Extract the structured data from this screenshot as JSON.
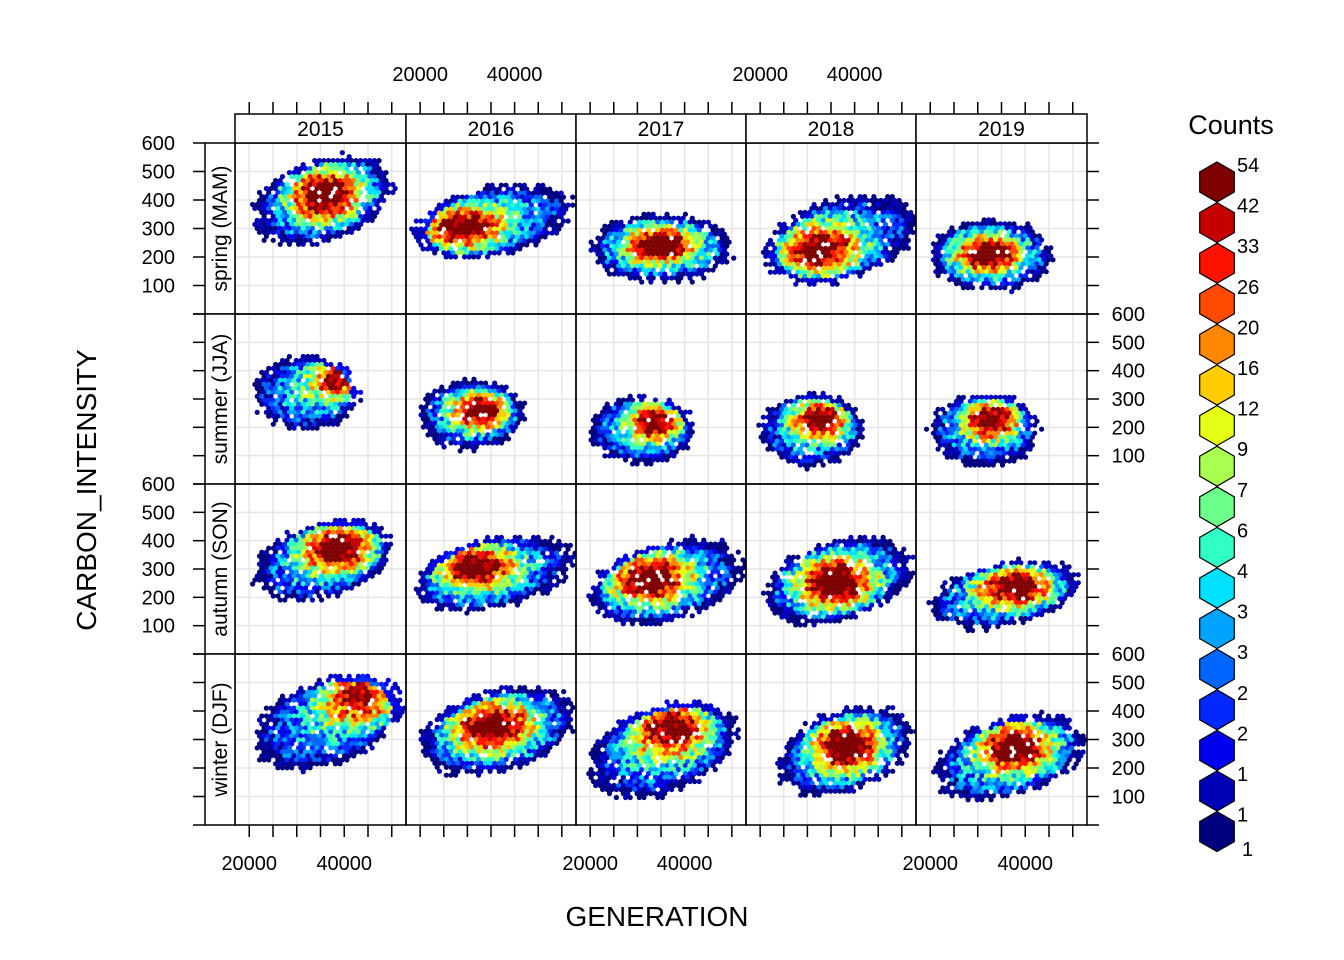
{
  "chart_data": {
    "type": "hexbin",
    "xlabel": "GENERATION",
    "ylabel": "CARBON_INTENSITY",
    "x_axis": {
      "range": [
        17000,
        53000
      ],
      "ticks": [
        20000,
        25000,
        30000,
        35000,
        40000,
        45000,
        50000
      ],
      "tick_labels": [
        "20000",
        "40000"
      ],
      "labeled_values": [
        20000,
        40000
      ]
    },
    "y_axis": {
      "range": [
        0,
        600
      ],
      "ticks": [
        0,
        100,
        200,
        300,
        400,
        500,
        600
      ],
      "tick_labels": [
        "100",
        "200",
        "300",
        "400",
        "500",
        "600"
      ],
      "labeled_values": [
        100,
        200,
        300,
        400,
        500,
        600
      ]
    },
    "grid": true,
    "years": [
      "2015",
      "2016",
      "2017",
      "2018",
      "2019"
    ],
    "seasons": [
      "spring (MAM)",
      "summer (JJA)",
      "autumn (SON)",
      "winter (DJF)"
    ],
    "legend": {
      "title": "Counts",
      "position": "right",
      "labels": [
        "54",
        "42",
        "33",
        "26",
        "20",
        "16",
        "12",
        "9",
        "7",
        "6",
        "4",
        "3",
        "3",
        "2",
        "2",
        "1",
        "1"
      ],
      "colors": [
        "#7f0000",
        "#c60000",
        "#ff1200",
        "#ff4a00",
        "#ff8800",
        "#ffcc00",
        "#e5ff16",
        "#a8ff4f",
        "#6cff8b",
        "#30ffc6",
        "#00e1ff",
        "#00a3ff",
        "#0066ff",
        "#0028ff",
        "#0000ee",
        "#0000b6",
        "#00007f"
      ]
    },
    "panels": [
      {
        "year": "2015",
        "season": "spring (MAM)",
        "x_range": [
          21000,
          50000
        ],
        "y_range": [
          220,
          580
        ],
        "peak_x": 36000,
        "peak_y": 420,
        "trend": "positive"
      },
      {
        "year": "2016",
        "season": "spring (MAM)",
        "x_range": [
          19000,
          52000
        ],
        "y_range": [
          170,
          480
        ],
        "peak_x": 28000,
        "peak_y": 300,
        "trend": "positive"
      },
      {
        "year": "2017",
        "season": "spring (MAM)",
        "x_range": [
          20000,
          50000
        ],
        "y_range": [
          110,
          350
        ],
        "peak_x": 35000,
        "peak_y": 240,
        "trend": "flat"
      },
      {
        "year": "2018",
        "season": "spring (MAM)",
        "x_range": [
          21000,
          53000
        ],
        "y_range": [
          80,
          440
        ],
        "peak_x": 32000,
        "peak_y": 220,
        "trend": "positive"
      },
      {
        "year": "2019",
        "season": "spring (MAM)",
        "x_range": [
          20000,
          46000
        ],
        "y_range": [
          80,
          330
        ],
        "peak_x": 32000,
        "peak_y": 210,
        "trend": "flat"
      },
      {
        "year": "2015",
        "season": "summer (JJA)",
        "x_range": [
          21000,
          43000
        ],
        "y_range": [
          190,
          450
        ],
        "peak_x": 39000,
        "peak_y": 370,
        "trend": "flat"
      },
      {
        "year": "2016",
        "season": "summer (JJA)",
        "x_range": [
          20000,
          42000
        ],
        "y_range": [
          120,
          370
        ],
        "peak_x": 33000,
        "peak_y": 260,
        "trend": "flat"
      },
      {
        "year": "2017",
        "season": "summer (JJA)",
        "x_range": [
          20000,
          42000
        ],
        "y_range": [
          70,
          310
        ],
        "peak_x": 34000,
        "peak_y": 220,
        "trend": "flat"
      },
      {
        "year": "2018",
        "season": "summer (JJA)",
        "x_range": [
          20000,
          42000
        ],
        "y_range": [
          60,
          320
        ],
        "peak_x": 33000,
        "peak_y": 230,
        "trend": "flat"
      },
      {
        "year": "2019",
        "season": "summer (JJA)",
        "x_range": [
          20000,
          43000
        ],
        "y_range": [
          60,
          320
        ],
        "peak_x": 33000,
        "peak_y": 230,
        "trend": "flat"
      },
      {
        "year": "2015",
        "season": "autumn (SON)",
        "x_range": [
          21000,
          50000
        ],
        "y_range": [
          160,
          500
        ],
        "peak_x": 39000,
        "peak_y": 380,
        "trend": "positive"
      },
      {
        "year": "2016",
        "season": "autumn (SON)",
        "x_range": [
          19000,
          52000
        ],
        "y_range": [
          130,
          440
        ],
        "peak_x": 31000,
        "peak_y": 310,
        "trend": "positive"
      },
      {
        "year": "2017",
        "season": "autumn (SON)",
        "x_range": [
          20000,
          52000
        ],
        "y_range": [
          80,
          430
        ],
        "peak_x": 32000,
        "peak_y": 270,
        "trend": "positive"
      },
      {
        "year": "2018",
        "season": "autumn (SON)",
        "x_range": [
          21000,
          52000
        ],
        "y_range": [
          80,
          440
        ],
        "peak_x": 36000,
        "peak_y": 250,
        "trend": "positive"
      },
      {
        "year": "2019",
        "season": "autumn (SON)",
        "x_range": [
          20000,
          51000
        ],
        "y_range": [
          70,
          350
        ],
        "peak_x": 38000,
        "peak_y": 240,
        "trend": "positive"
      },
      {
        "year": "2015",
        "season": "winter (DJF)",
        "x_range": [
          21000,
          52000
        ],
        "y_range": [
          170,
          550
        ],
        "peak_x": 44000,
        "peak_y": 460,
        "trend": "positive"
      },
      {
        "year": "2016",
        "season": "winter (DJF)",
        "x_range": [
          20000,
          53000
        ],
        "y_range": [
          150,
          510
        ],
        "peak_x": 35000,
        "peak_y": 350,
        "trend": "positive"
      },
      {
        "year": "2017",
        "season": "winter (DJF)",
        "x_range": [
          20000,
          51000
        ],
        "y_range": [
          70,
          460
        ],
        "peak_x": 37000,
        "peak_y": 350,
        "trend": "positive"
      },
      {
        "year": "2018",
        "season": "winter (DJF)",
        "x_range": [
          24000,
          52000
        ],
        "y_range": [
          80,
          440
        ],
        "peak_x": 38000,
        "peak_y": 280,
        "trend": "positive"
      },
      {
        "year": "2019",
        "season": "winter (DJF)",
        "x_range": [
          21000,
          52000
        ],
        "y_range": [
          60,
          410
        ],
        "peak_x": 38000,
        "peak_y": 280,
        "trend": "positive"
      }
    ]
  }
}
